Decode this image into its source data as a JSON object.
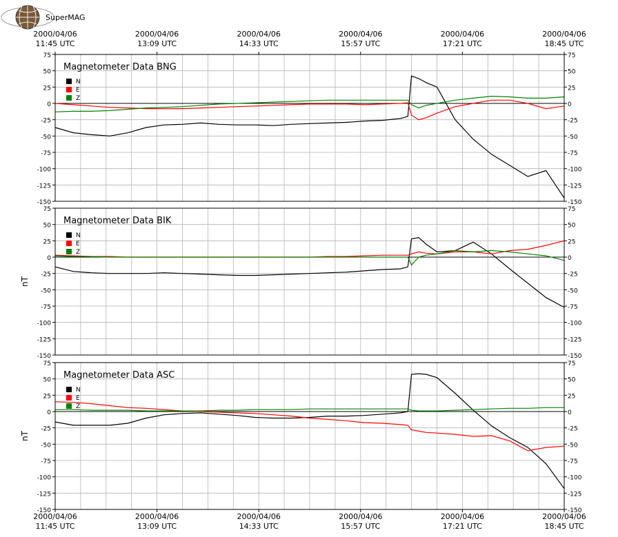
{
  "logo": {
    "text": "SuperMAG"
  },
  "chart_data": [
    {
      "type": "line",
      "title": "Magnetometer Data BNG",
      "xaxis_position": "top",
      "xlim": [
        "2000-04-06T11:45",
        "2000-04-06T18:45"
      ],
      "xticks": [
        {
          "value": "2000-04-06T11:45",
          "label": [
            "2000/04/06",
            "11:45 UTC"
          ]
        },
        {
          "value": "2000-04-06T13:09",
          "label": [
            "2000/04/06",
            "13:09 UTC"
          ]
        },
        {
          "value": "2000-04-06T14:33",
          "label": [
            "2000/04/06",
            "14:33 UTC"
          ]
        },
        {
          "value": "2000-04-06T15:57",
          "label": [
            "2000/04/06",
            "15:57 UTC"
          ]
        },
        {
          "value": "2000-04-06T17:21",
          "label": [
            "2000/04/06",
            "17:21 UTC"
          ]
        },
        {
          "value": "2000-04-06T18:45",
          "label": [
            "2000/04/06",
            "18:45 UTC"
          ]
        }
      ],
      "xgrid": [
        "2000-04-06T11:45",
        "2000-04-06T12:06",
        "2000-04-06T12:27",
        "2000-04-06T12:48",
        "2000-04-06T13:09",
        "2000-04-06T13:30",
        "2000-04-06T13:51",
        "2000-04-06T14:12",
        "2000-04-06T14:33",
        "2000-04-06T14:54",
        "2000-04-06T15:15",
        "2000-04-06T15:36",
        "2000-04-06T15:57",
        "2000-04-06T16:18",
        "2000-04-06T16:39",
        "2000-04-06T17:00",
        "2000-04-06T17:21",
        "2000-04-06T17:42",
        "2000-04-06T18:03",
        "2000-04-06T18:24",
        "2000-04-06T18:45"
      ],
      "ylim": [
        -150,
        75
      ],
      "yticks": [
        75,
        50,
        25,
        0,
        -25,
        -50,
        -75,
        -100,
        -125,
        -150
      ],
      "grid": true,
      "zero_line": true,
      "x": [
        "2000-04-06T11:45",
        "2000-04-06T12:00",
        "2000-04-06T12:15",
        "2000-04-06T12:30",
        "2000-04-06T12:45",
        "2000-04-06T13:00",
        "2000-04-06T13:15",
        "2000-04-06T13:30",
        "2000-04-06T13:45",
        "2000-04-06T14:00",
        "2000-04-06T14:15",
        "2000-04-06T14:30",
        "2000-04-06T14:45",
        "2000-04-06T15:00",
        "2000-04-06T15:15",
        "2000-04-06T15:30",
        "2000-04-06T15:45",
        "2000-04-06T16:00",
        "2000-04-06T16:15",
        "2000-04-06T16:30",
        "2000-04-06T16:36",
        "2000-04-06T16:39",
        "2000-04-06T16:45",
        "2000-04-06T16:51",
        "2000-04-06T17:00",
        "2000-04-06T17:15",
        "2000-04-06T17:30",
        "2000-04-06T17:45",
        "2000-04-06T18:00",
        "2000-04-06T18:15",
        "2000-04-06T18:30",
        "2000-04-06T18:45"
      ],
      "series": [
        {
          "name": "N",
          "color": "#000000",
          "values": [
            -37,
            -45,
            -48,
            -50,
            -45,
            -37,
            -33,
            -32,
            -30,
            -32,
            -33,
            -33,
            -34,
            -32,
            -31,
            -30,
            -29,
            -27,
            -26,
            -23,
            -20,
            42,
            38,
            32,
            25,
            -25,
            -55,
            -78,
            -95,
            -112,
            -103,
            -145
          ]
        },
        {
          "name": "E",
          "color": "#ff0000",
          "values": [
            0,
            -2,
            -4,
            -6,
            -7,
            -8,
            -8,
            -8,
            -7,
            -6,
            -5,
            -4,
            -3,
            -2,
            -1,
            -1,
            -1,
            -2,
            -1,
            0,
            1,
            -18,
            -25,
            -22,
            -15,
            -5,
            0,
            5,
            5,
            0,
            -8,
            -4
          ]
        },
        {
          "name": "Z",
          "color": "#008000",
          "values": [
            -13,
            -12,
            -12,
            -11,
            -9,
            -7,
            -6,
            -5,
            -3,
            -1,
            0,
            1,
            2,
            3,
            4,
            5,
            5,
            5,
            5,
            5,
            5,
            -2,
            -7,
            -3,
            0,
            5,
            8,
            11,
            10,
            8,
            8,
            10
          ]
        }
      ]
    },
    {
      "type": "line",
      "title": "Magnetometer Data BIK",
      "ylabel": "nT",
      "xlim": [
        "2000-04-06T11:45",
        "2000-04-06T18:45"
      ],
      "xgrid": [
        "2000-04-06T11:45",
        "2000-04-06T12:06",
        "2000-04-06T12:27",
        "2000-04-06T12:48",
        "2000-04-06T13:09",
        "2000-04-06T13:30",
        "2000-04-06T13:51",
        "2000-04-06T14:12",
        "2000-04-06T14:33",
        "2000-04-06T14:54",
        "2000-04-06T15:15",
        "2000-04-06T15:36",
        "2000-04-06T15:57",
        "2000-04-06T16:18",
        "2000-04-06T16:39",
        "2000-04-06T17:00",
        "2000-04-06T17:21",
        "2000-04-06T17:42",
        "2000-04-06T18:03",
        "2000-04-06T18:24",
        "2000-04-06T18:45"
      ],
      "ylim": [
        -150,
        75
      ],
      "yticks": [
        75,
        50,
        25,
        0,
        -25,
        -50,
        -75,
        -100,
        -125,
        -150
      ],
      "grid": true,
      "zero_line": true,
      "x": [
        "2000-04-06T11:45",
        "2000-04-06T12:00",
        "2000-04-06T12:15",
        "2000-04-06T12:30",
        "2000-04-06T12:45",
        "2000-04-06T13:00",
        "2000-04-06T13:15",
        "2000-04-06T13:30",
        "2000-04-06T13:45",
        "2000-04-06T14:00",
        "2000-04-06T14:15",
        "2000-04-06T14:30",
        "2000-04-06T14:45",
        "2000-04-06T15:00",
        "2000-04-06T15:15",
        "2000-04-06T15:30",
        "2000-04-06T15:45",
        "2000-04-06T16:00",
        "2000-04-06T16:15",
        "2000-04-06T16:30",
        "2000-04-06T16:36",
        "2000-04-06T16:39",
        "2000-04-06T16:45",
        "2000-04-06T16:51",
        "2000-04-06T17:00",
        "2000-04-06T17:15",
        "2000-04-06T17:30",
        "2000-04-06T17:45",
        "2000-04-06T18:00",
        "2000-04-06T18:15",
        "2000-04-06T18:30",
        "2000-04-06T18:45"
      ],
      "series": [
        {
          "name": "N",
          "color": "#000000",
          "values": [
            -15,
            -22,
            -24,
            -25,
            -25,
            -25,
            -24,
            -25,
            -26,
            -27,
            -28,
            -28,
            -27,
            -26,
            -25,
            -24,
            -23,
            -21,
            -19,
            -18,
            -15,
            28,
            30,
            20,
            8,
            10,
            23,
            5,
            -18,
            -40,
            -62,
            -77
          ]
        },
        {
          "name": "E",
          "color": "#ff0000",
          "values": [
            3,
            2,
            1,
            1,
            0,
            0,
            0,
            0,
            0,
            0,
            0,
            0,
            0,
            0,
            0,
            1,
            1,
            2,
            3,
            3,
            3,
            5,
            8,
            6,
            5,
            8,
            8,
            5,
            10,
            12,
            18,
            25
          ]
        },
        {
          "name": "Z",
          "color": "#008000",
          "values": [
            2,
            1,
            1,
            0,
            0,
            0,
            0,
            0,
            0,
            0,
            0,
            0,
            0,
            0,
            0,
            0,
            0,
            0,
            0,
            0,
            0,
            -12,
            0,
            3,
            5,
            10,
            8,
            10,
            8,
            5,
            2,
            -5
          ]
        }
      ]
    },
    {
      "type": "line",
      "title": "Magnetometer Data ASC",
      "ylabel": "nT",
      "xaxis_position": "bottom",
      "xlim": [
        "2000-04-06T11:45",
        "2000-04-06T18:45"
      ],
      "xticks": [
        {
          "value": "2000-04-06T11:45",
          "label": [
            "2000/04/06",
            "11:45 UTC"
          ]
        },
        {
          "value": "2000-04-06T13:09",
          "label": [
            "2000/04/06",
            "13:09 UTC"
          ]
        },
        {
          "value": "2000-04-06T14:33",
          "label": [
            "2000/04/06",
            "14:33 UTC"
          ]
        },
        {
          "value": "2000-04-06T15:57",
          "label": [
            "2000/04/06",
            "15:57 UTC"
          ]
        },
        {
          "value": "2000-04-06T17:21",
          "label": [
            "2000/04/06",
            "17:21 UTC"
          ]
        },
        {
          "value": "2000-04-06T18:45",
          "label": [
            "2000/04/06",
            "18:45 UTC"
          ]
        }
      ],
      "xgrid": [
        "2000-04-06T11:45",
        "2000-04-06T12:06",
        "2000-04-06T12:27",
        "2000-04-06T12:48",
        "2000-04-06T13:09",
        "2000-04-06T13:30",
        "2000-04-06T13:51",
        "2000-04-06T14:12",
        "2000-04-06T14:33",
        "2000-04-06T14:54",
        "2000-04-06T15:15",
        "2000-04-06T15:36",
        "2000-04-06T15:57",
        "2000-04-06T16:18",
        "2000-04-06T16:39",
        "2000-04-06T17:00",
        "2000-04-06T17:21",
        "2000-04-06T17:42",
        "2000-04-06T18:03",
        "2000-04-06T18:24",
        "2000-04-06T18:45"
      ],
      "ylim": [
        -150,
        75
      ],
      "yticks": [
        75,
        50,
        25,
        0,
        -25,
        -50,
        -75,
        -100,
        -125,
        -150
      ],
      "grid": true,
      "zero_line": true,
      "x": [
        "2000-04-06T11:45",
        "2000-04-06T12:00",
        "2000-04-06T12:15",
        "2000-04-06T12:30",
        "2000-04-06T12:45",
        "2000-04-06T13:00",
        "2000-04-06T13:15",
        "2000-04-06T13:30",
        "2000-04-06T13:45",
        "2000-04-06T14:00",
        "2000-04-06T14:15",
        "2000-04-06T14:30",
        "2000-04-06T14:45",
        "2000-04-06T15:00",
        "2000-04-06T15:15",
        "2000-04-06T15:30",
        "2000-04-06T15:45",
        "2000-04-06T16:00",
        "2000-04-06T16:15",
        "2000-04-06T16:30",
        "2000-04-06T16:36",
        "2000-04-06T16:39",
        "2000-04-06T16:45",
        "2000-04-06T16:51",
        "2000-04-06T17:00",
        "2000-04-06T17:15",
        "2000-04-06T17:30",
        "2000-04-06T17:45",
        "2000-04-06T18:00",
        "2000-04-06T18:15",
        "2000-04-06T18:30",
        "2000-04-06T18:45"
      ],
      "series": [
        {
          "name": "N",
          "color": "#000000",
          "values": [
            -16,
            -21,
            -21,
            -21,
            -18,
            -10,
            -5,
            -3,
            -2,
            -4,
            -6,
            -9,
            -10,
            -10,
            -9,
            -7,
            -7,
            -6,
            -4,
            -2,
            0,
            57,
            58,
            57,
            52,
            28,
            2,
            -22,
            -40,
            -55,
            -80,
            -118
          ]
        },
        {
          "name": "E",
          "color": "#ff0000",
          "values": [
            15,
            14,
            12,
            9,
            6,
            5,
            3,
            1,
            0,
            -1,
            -2,
            -3,
            -5,
            -7,
            -10,
            -12,
            -14,
            -17,
            -18,
            -20,
            -21,
            -28,
            -30,
            -32,
            -33,
            -35,
            -38,
            -37,
            -45,
            -60,
            -55,
            -53
          ]
        },
        {
          "name": "Z",
          "color": "#008000",
          "values": [
            3,
            3,
            2,
            2,
            2,
            1,
            1,
            1,
            1,
            2,
            2,
            3,
            3,
            3,
            4,
            4,
            4,
            4,
            4,
            4,
            4,
            2,
            1,
            1,
            1,
            2,
            3,
            4,
            5,
            5,
            6,
            6
          ]
        }
      ]
    }
  ]
}
